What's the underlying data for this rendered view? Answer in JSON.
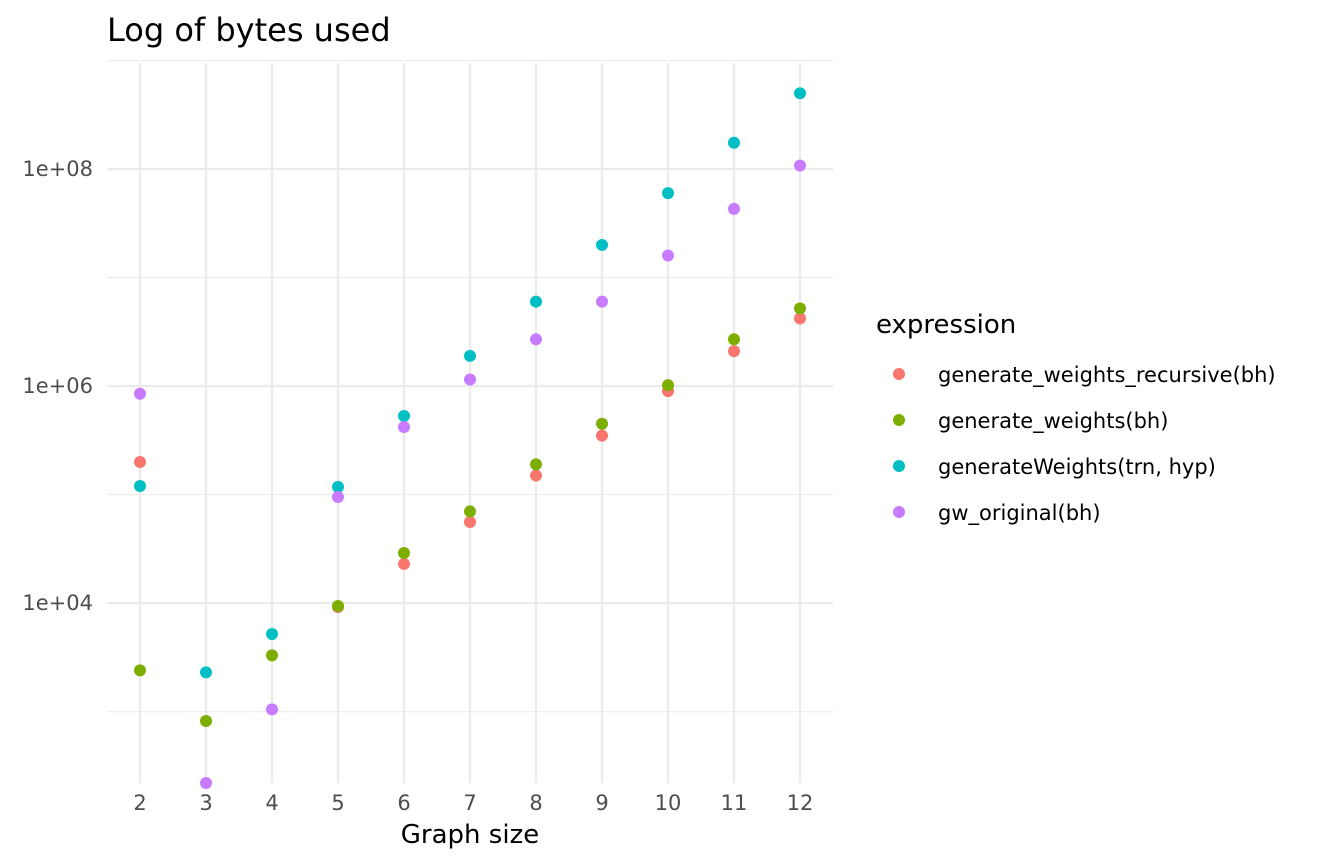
{
  "chart_data": {
    "type": "scatter",
    "title": "Log of bytes used",
    "xlabel": "Graph size",
    "ylabel": "",
    "x_ticks": [
      2,
      3,
      4,
      5,
      6,
      7,
      8,
      9,
      10,
      11,
      12
    ],
    "y_scale": "log10",
    "y_ticks": [
      {
        "value": 10000,
        "label": "1e+04"
      },
      {
        "value": 1000000,
        "label": "1e+06"
      },
      {
        "value": 100000000,
        "label": "1e+08"
      }
    ],
    "y_minor_ticks": [
      1000,
      100000,
      10000000,
      1000000000
    ],
    "xlim": [
      1.5,
      12.5
    ],
    "ylim": [
      220,
      950000000
    ],
    "grid": true,
    "legend": {
      "title": "expression",
      "position": "right"
    },
    "series": [
      {
        "name": "generate_weights_recursive(bh)",
        "color": "#F8766D",
        "points": [
          [
            2,
            200000
          ],
          [
            5,
            9200
          ],
          [
            6,
            23000
          ],
          [
            7,
            56000
          ],
          [
            8,
            150000
          ],
          [
            9,
            350000
          ],
          [
            10,
            900000
          ],
          [
            11,
            2100000
          ],
          [
            12,
            4200000
          ]
        ]
      },
      {
        "name": "generate_weights(bh)",
        "color": "#7CAE00",
        "points": [
          [
            2,
            2400
          ],
          [
            3,
            820
          ],
          [
            4,
            3300
          ],
          [
            5,
            9400
          ],
          [
            6,
            29000
          ],
          [
            7,
            70000
          ],
          [
            8,
            190000
          ],
          [
            9,
            450000
          ],
          [
            10,
            1020000
          ],
          [
            11,
            2700000
          ],
          [
            12,
            5200000
          ]
        ]
      },
      {
        "name": "generateWeights(trn, hyp)",
        "color": "#00BFC4",
        "points": [
          [
            2,
            120000
          ],
          [
            3,
            2300
          ],
          [
            4,
            5200
          ],
          [
            5,
            118000
          ],
          [
            6,
            530000
          ],
          [
            7,
            1900000
          ],
          [
            8,
            6000000
          ],
          [
            9,
            20000000
          ],
          [
            10,
            60000000
          ],
          [
            11,
            175000000
          ],
          [
            12,
            500000000
          ]
        ]
      },
      {
        "name": "gw_original(bh)",
        "color": "#C77CFF",
        "points": [
          [
            2,
            850000
          ],
          [
            3,
            220
          ],
          [
            4,
            1050
          ],
          [
            5,
            95000
          ],
          [
            6,
            420000
          ],
          [
            7,
            1150000
          ],
          [
            8,
            2700000
          ],
          [
            9,
            6000000
          ],
          [
            10,
            16000000
          ],
          [
            11,
            43000000
          ],
          [
            12,
            108000000
          ]
        ]
      }
    ]
  }
}
